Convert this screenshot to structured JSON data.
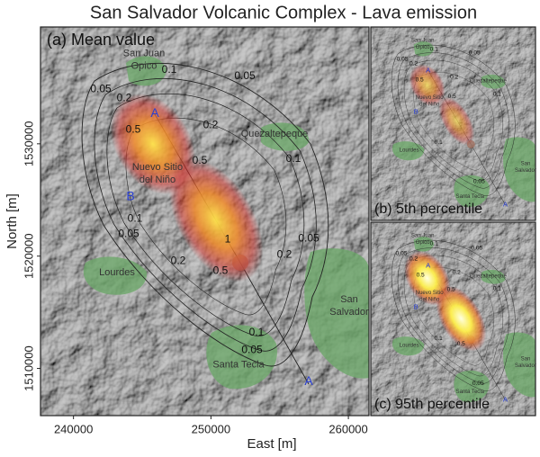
{
  "title": "San Salvador Volcanic Complex - Lava emission",
  "axes": {
    "xlabel": "East [m]",
    "ylabel": "North [m]",
    "xlim": [
      237600,
      261500
    ],
    "ylim": [
      1505800,
      1540400
    ],
    "xticks": [
      240000,
      250000,
      260000
    ],
    "yticks": [
      1510000,
      1520000,
      1530000
    ]
  },
  "panels": [
    {
      "label": "(a) Mean value",
      "places": [
        [
          "San Juan",
          "Opico"
        ],
        [
          "Quezaltepeque"
        ],
        [
          "Nuevo Sitio",
          "del Niño"
        ],
        [
          "Lourdes"
        ],
        [
          "San",
          "Salvador"
        ],
        [
          "Santa Tecla"
        ]
      ],
      "points": [
        "A",
        "B",
        "A"
      ],
      "contour_labels": [
        "0.05",
        "0.1",
        "0.05",
        "0.2",
        "0.5",
        "0.2",
        "0.5",
        "0.1",
        "0.1",
        "0.05",
        "0.2",
        "0.5",
        "1",
        "0.05",
        "0.2",
        "0.1",
        "0.05"
      ]
    },
    {
      "label": "(b) 5th percentile",
      "places": [
        [
          "San Juan",
          "Opico"
        ],
        [
          "Quezaltepeque"
        ],
        [
          "Nuevo Sitio",
          "del Niño"
        ],
        [
          "Lourdes"
        ],
        [
          "San",
          "Salvador"
        ],
        [
          "Santa Tecla"
        ]
      ],
      "points": [
        "A",
        "B",
        "A"
      ],
      "contour_labels": [
        "0.05",
        "0.1",
        "0.05",
        "0.2",
        "0.5",
        "0.2",
        "0.1",
        "0.5",
        "0.1",
        "0.05"
      ]
    },
    {
      "label": "(c) 95th percentile",
      "places": [
        [
          "San Juan",
          "Opico"
        ],
        [
          "Quezaltepeque"
        ],
        [
          "Nuevo Sitio",
          "del Niño"
        ],
        [
          "Lourdes"
        ],
        [
          "San",
          "Salvador"
        ],
        [
          "Santa Tecla"
        ]
      ],
      "points": [
        "A",
        "B",
        "A"
      ],
      "contour_labels": [
        "0.05",
        "0.1",
        "0.2",
        "0.5",
        "0.5",
        "0.2",
        "0.1",
        "0.05",
        "0.5",
        "0.1",
        "0.05"
      ]
    }
  ]
}
